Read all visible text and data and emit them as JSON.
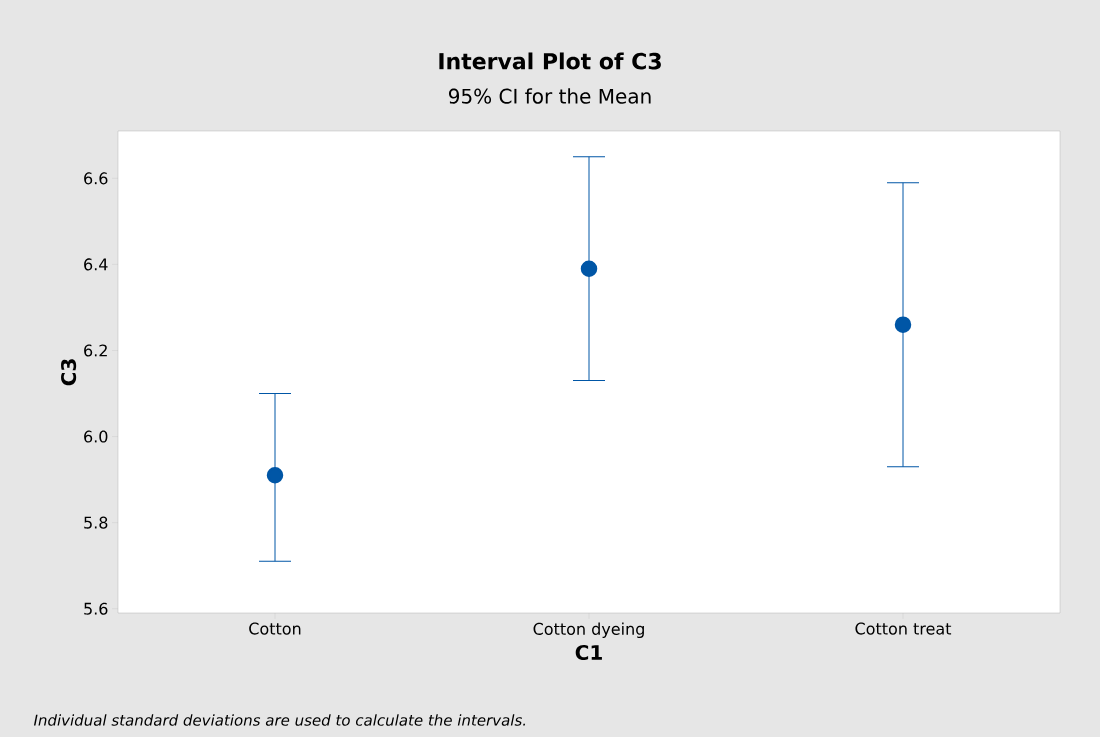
{
  "chart_data": {
    "type": "scatter",
    "title": "Interval Plot of C3",
    "subtitle": "95% CI for the Mean",
    "xlabel": "C1",
    "ylabel": "C3",
    "categories": [
      "Cotton",
      "Cotton dyeing",
      "Cotton treat"
    ],
    "values": [
      5.91,
      6.39,
      6.26
    ],
    "errors": [
      [
        5.71,
        6.1
      ],
      [
        6.13,
        6.65
      ],
      [
        5.93,
        6.59
      ]
    ],
    "color": "#0056a6",
    "marker": "circle",
    "ylim": [
      5.59,
      6.71
    ],
    "yticks": [
      5.6,
      5.8,
      {
        "value": 6.0,
        "label": "6.0"
      },
      6.2,
      6.4,
      6.6
    ],
    "annotations": [
      "Individual standard deviations are used to calculate the intervals."
    ]
  }
}
